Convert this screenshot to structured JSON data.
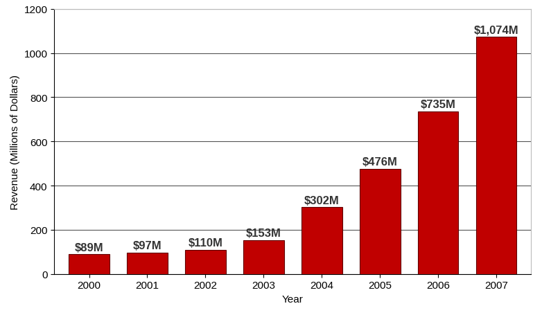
{
  "chart_data": {
    "type": "bar",
    "x_label": "Year",
    "y_label": "Revenue (Millions of Dollars)",
    "categories": [
      "2000",
      "2001",
      "2002",
      "2003",
      "2004",
      "2005",
      "2006",
      "2007"
    ],
    "values": [
      89,
      97,
      110,
      153,
      302,
      476,
      735,
      1074
    ],
    "value_labels": [
      "$89M",
      "$97M",
      "$110M",
      "$153M",
      "$302M",
      "$476M",
      "$735M",
      "$1,074M"
    ],
    "data_labels": true,
    "color": "#c00000",
    "ylim": [
      0,
      1200
    ],
    "yticks": [
      0,
      200,
      400,
      600,
      800,
      1000,
      1200
    ],
    "grid": true
  }
}
